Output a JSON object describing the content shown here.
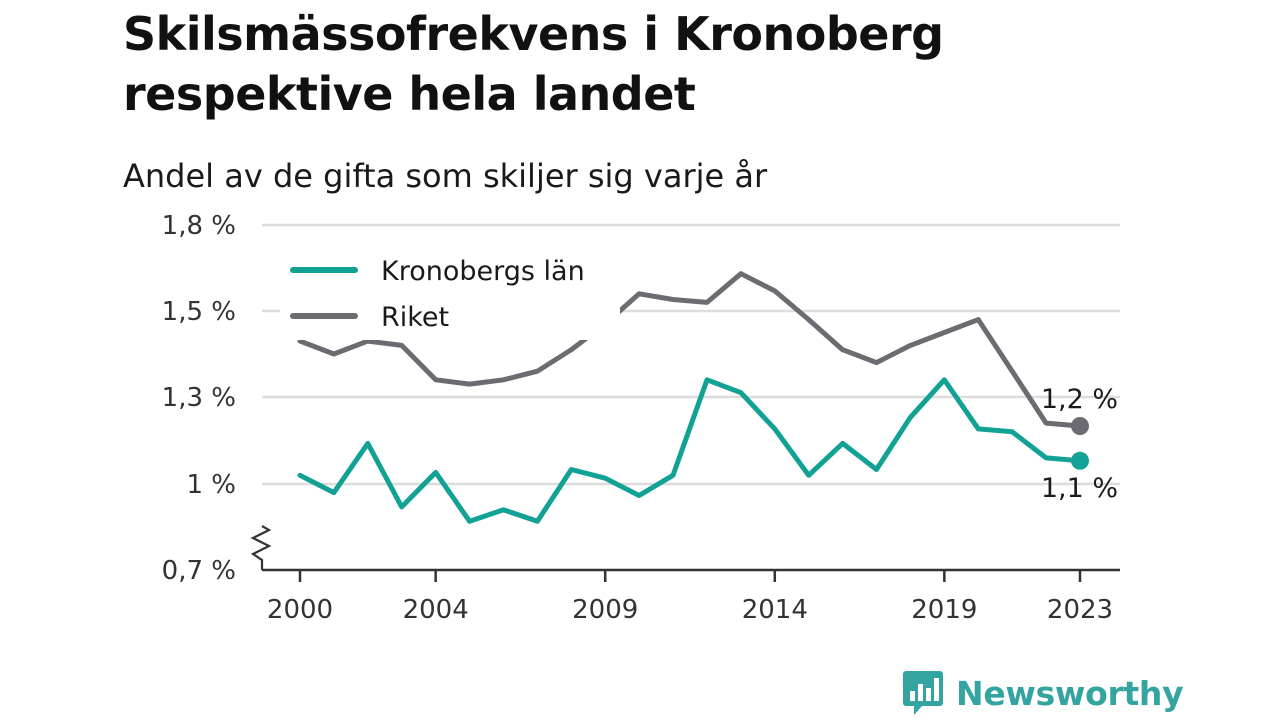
{
  "title": "Skilsmässofrekvens i Kronoberg respektive hela landet",
  "subtitle": "Andel av de gifta som skiljer sig varje år",
  "brand": {
    "name": "Newsworthy",
    "icon": "newsworthy-chat-bars-icon",
    "color": "#33a4a0"
  },
  "chart_data": {
    "type": "line",
    "x": [
      2000,
      2001,
      2002,
      2003,
      2004,
      2005,
      2006,
      2007,
      2008,
      2009,
      2010,
      2011,
      2012,
      2013,
      2014,
      2015,
      2016,
      2017,
      2018,
      2019,
      2020,
      2021,
      2022,
      2023
    ],
    "x_ticks": [
      2000,
      2004,
      2009,
      2014,
      2019,
      2023
    ],
    "y_ticks": [
      {
        "value": 0.7,
        "label": "0,7 %"
      },
      {
        "value": 1.0,
        "label": "1 %"
      },
      {
        "value": 1.3,
        "label": "1,3 %"
      },
      {
        "value": 1.5,
        "label": "1,5 %"
      },
      {
        "value": 1.8,
        "label": "1,8 %"
      }
    ],
    "ylim": [
      0.7,
      1.8
    ],
    "y_axis_break": true,
    "grid": "horizontal",
    "legend_position": "top-left",
    "series": [
      {
        "name": "Kronobergs län",
        "color": "#12a195",
        "values": [
          1.03,
          0.97,
          1.14,
          0.92,
          1.04,
          0.87,
          0.91,
          0.87,
          1.05,
          1.02,
          0.96,
          1.03,
          1.34,
          1.31,
          1.19,
          1.03,
          1.14,
          1.05,
          1.23,
          1.34,
          1.19,
          1.18,
          1.09,
          1.08
        ],
        "end_label": "1,1 %"
      },
      {
        "name": "Riket",
        "color": "#6c6b71",
        "values": [
          1.43,
          1.4,
          1.43,
          1.42,
          1.34,
          1.33,
          1.34,
          1.36,
          1.41,
          1.47,
          1.56,
          1.54,
          1.53,
          1.63,
          1.57,
          1.48,
          1.41,
          1.38,
          1.42,
          1.45,
          1.48,
          1.36,
          1.21,
          1.2
        ],
        "end_label": "1,2 %"
      }
    ]
  }
}
